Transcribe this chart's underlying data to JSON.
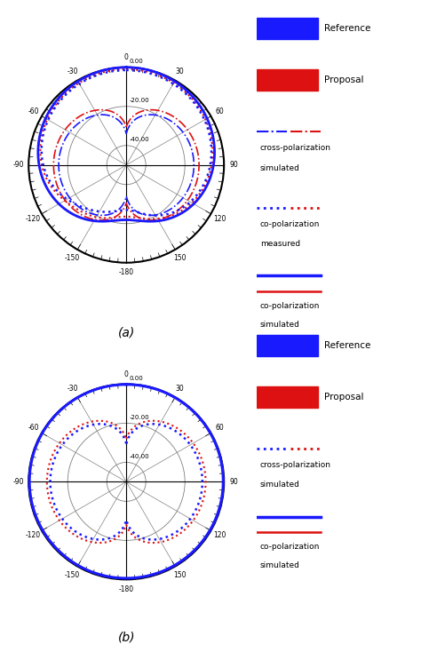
{
  "colors": {
    "blue": "#1a1aff",
    "red": "#dd1111"
  },
  "rlim_min": -50,
  "rlim_max": 0,
  "r_grid_dB": [
    0,
    -20,
    -40
  ],
  "r_labels": [
    "0.00",
    "-20.00",
    "-40.00"
  ],
  "angle_labels": {
    "0": "0",
    "30": "30",
    "60": "60",
    "90": "90",
    "120": "120",
    "150": "150",
    "180": "-180",
    "210": "-150",
    "240": "-120",
    "270": "-90",
    "300": "-60",
    "330": "-30"
  },
  "label_a": "(a)",
  "label_b": "(b)"
}
